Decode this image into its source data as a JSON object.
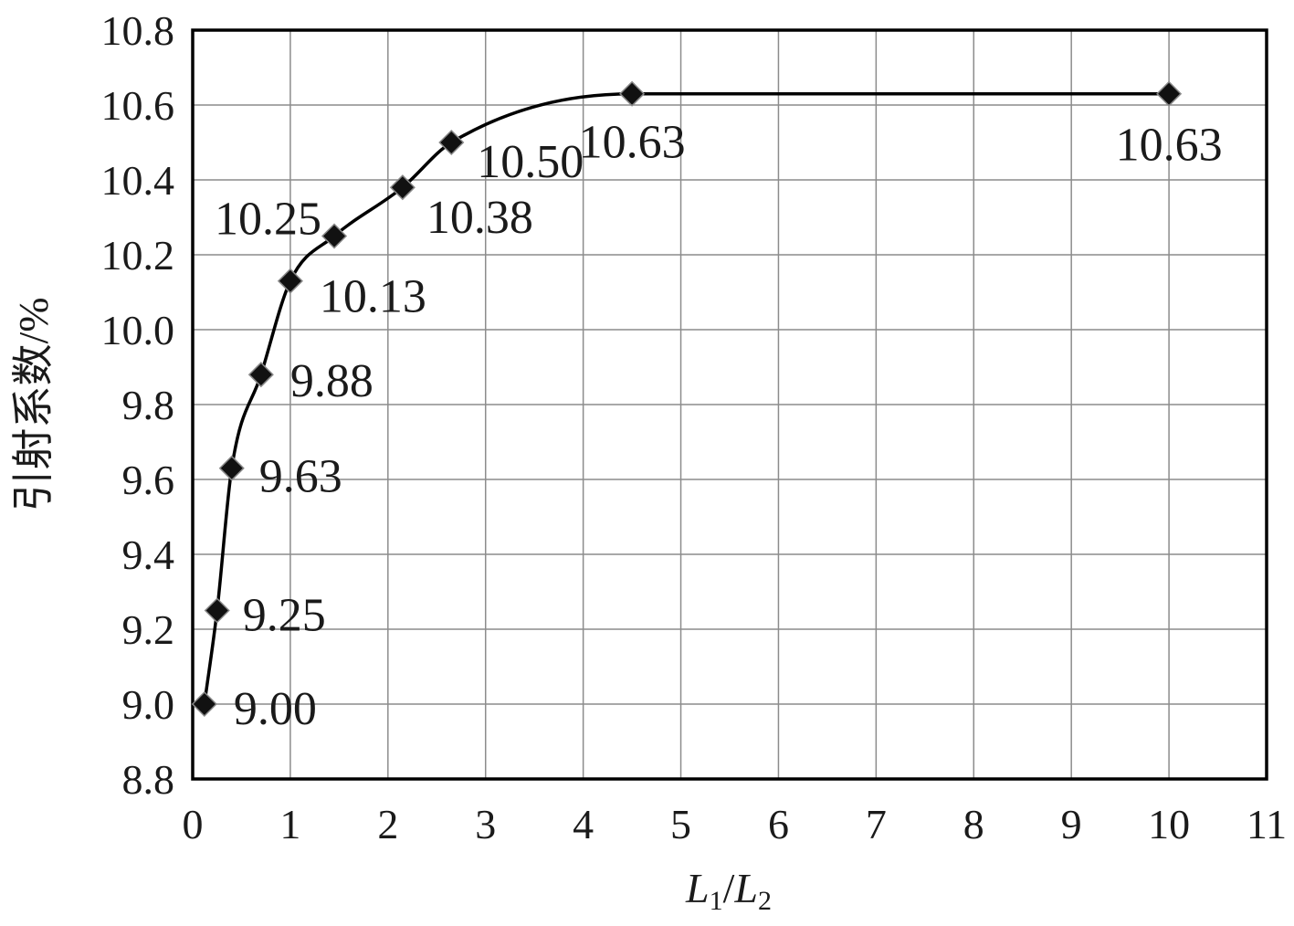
{
  "chart_data": {
    "type": "line",
    "title": "",
    "xlabel": "L1/L2",
    "xlabel_parts": {
      "main1": "L",
      "sub1": "1",
      "slash": "/",
      "main2": "L",
      "sub2": "2"
    },
    "ylabel": "引射系数/%",
    "xlim": [
      0,
      11
    ],
    "ylim": [
      8.8,
      10.8
    ],
    "xticks": [
      "0",
      "1",
      "2",
      "3",
      "4",
      "5",
      "6",
      "7",
      "8",
      "9",
      "10",
      "11"
    ],
    "yticks": [
      "8.8",
      "9.0",
      "9.2",
      "9.4",
      "9.6",
      "9.8",
      "10.0",
      "10.2",
      "10.4",
      "10.6",
      "10.8"
    ],
    "grid": true,
    "legend": "none",
    "series": [
      {
        "color": "#000000",
        "marker": "diamond",
        "smooth": true,
        "x": [
          0.12,
          0.25,
          0.4,
          0.7,
          1.0,
          1.45,
          2.15,
          2.65,
          4.5,
          10.0
        ],
        "y": [
          9.0,
          9.25,
          9.63,
          9.88,
          10.13,
          10.25,
          10.38,
          10.5,
          10.63,
          10.63
        ],
        "labels": [
          "9.00",
          "9.25",
          "9.63",
          "9.88",
          "10.13",
          "10.25",
          "10.38",
          "10.50",
          "10.63",
          "10.63"
        ]
      }
    ]
  }
}
